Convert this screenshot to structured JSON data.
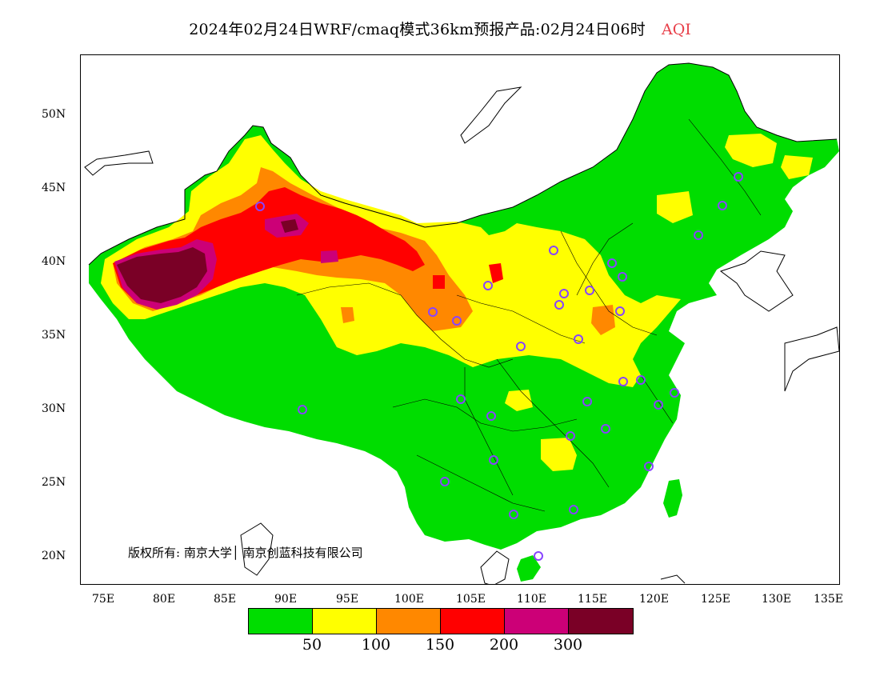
{
  "header": {
    "title": "2024年02月24日WRF/cmaq模式36km预报产品:02月24日06时",
    "variable": "AQI",
    "variable_color": "#e8404a"
  },
  "map": {
    "lat_ticks": [
      "50N",
      "45N",
      "40N",
      "35N",
      "30N",
      "25N",
      "20N"
    ],
    "lon_ticks": [
      "75E",
      "80E",
      "85E",
      "90E",
      "95E",
      "100E",
      "105E",
      "110E",
      "115E",
      "120E",
      "125E",
      "130E",
      "135E"
    ],
    "copyright": "版权所有: 南京大学│ 南京创蓝科技有限公司"
  },
  "legend": {
    "colors": [
      "#00dd00",
      "#ffff00",
      "#ff8800",
      "#ff0000",
      "#cc0077",
      "#7a0026"
    ],
    "labels": [
      "50",
      "100",
      "150",
      "200",
      "300"
    ],
    "station_marker_color": "#8844ff"
  }
}
